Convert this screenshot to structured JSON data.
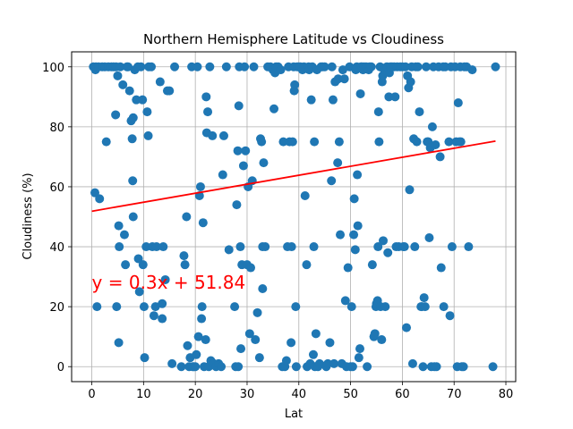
{
  "chart_data": {
    "type": "scatter",
    "title": "Northern Hemisphere Latitude vs Cloudiness",
    "xlabel": "Lat",
    "ylabel": "Cloudiness (%)",
    "xlim": [
      -3.9,
      81.9
    ],
    "ylim": [
      -5,
      105
    ],
    "xticks": [
      0,
      10,
      20,
      30,
      40,
      50,
      60,
      70,
      80
    ],
    "yticks": [
      0,
      20,
      40,
      60,
      80,
      100
    ],
    "grid": true,
    "colors": {
      "points": "#1f77b4",
      "regression": "#ff0000",
      "annotation": "#ff0000"
    },
    "annotation": {
      "text": "y = 0.3x + 51.84",
      "x": 0,
      "y": 26
    },
    "regression": {
      "slope": 0.3,
      "intercept": 51.84,
      "x_range": [
        0,
        78
      ]
    },
    "points": [
      [
        0.3,
        100
      ],
      [
        0.6,
        58
      ],
      [
        0.7,
        99
      ],
      [
        0.8,
        100
      ],
      [
        1,
        20
      ],
      [
        1.3,
        100
      ],
      [
        1.5,
        56
      ],
      [
        2,
        100
      ],
      [
        2.5,
        100
      ],
      [
        2.8,
        75
      ],
      [
        3.2,
        100
      ],
      [
        3.8,
        100
      ],
      [
        4.2,
        100
      ],
      [
        4.6,
        84
      ],
      [
        4.7,
        100
      ],
      [
        4.8,
        20
      ],
      [
        5,
        97
      ],
      [
        5.2,
        47
      ],
      [
        5.2,
        8
      ],
      [
        5.3,
        40
      ],
      [
        5.5,
        100
      ],
      [
        6,
        94
      ],
      [
        6.3,
        44
      ],
      [
        6.5,
        34
      ],
      [
        6.8,
        100
      ],
      [
        7,
        100
      ],
      [
        7.3,
        92
      ],
      [
        7.6,
        82
      ],
      [
        7.8,
        76
      ],
      [
        7.9,
        62
      ],
      [
        8,
        50
      ],
      [
        8,
        83
      ],
      [
        8.3,
        99
      ],
      [
        8.6,
        89
      ],
      [
        8.9,
        100
      ],
      [
        9,
        36
      ],
      [
        9.2,
        25
      ],
      [
        9.5,
        100
      ],
      [
        9.8,
        89
      ],
      [
        9.9,
        34
      ],
      [
        10.1,
        20
      ],
      [
        10.2,
        3
      ],
      [
        10.5,
        40
      ],
      [
        10.7,
        85
      ],
      [
        10.9,
        77
      ],
      [
        11,
        100
      ],
      [
        11.5,
        100
      ],
      [
        11.7,
        40
      ],
      [
        12,
        17
      ],
      [
        12.3,
        20
      ],
      [
        12.5,
        40
      ],
      [
        13.2,
        95
      ],
      [
        13.6,
        21
      ],
      [
        13.6,
        16
      ],
      [
        13.8,
        40
      ],
      [
        14.2,
        29
      ],
      [
        14.6,
        92
      ],
      [
        15,
        92
      ],
      [
        15.5,
        1
      ],
      [
        16,
        100
      ],
      [
        17.3,
        0
      ],
      [
        17.8,
        37
      ],
      [
        18,
        34
      ],
      [
        18.3,
        50
      ],
      [
        18.5,
        7
      ],
      [
        18.8,
        0
      ],
      [
        19,
        3
      ],
      [
        19.3,
        100
      ],
      [
        19.5,
        0
      ],
      [
        19.7,
        0
      ],
      [
        20,
        0
      ],
      [
        20.2,
        4
      ],
      [
        20.4,
        100
      ],
      [
        20.6,
        10
      ],
      [
        20.8,
        57
      ],
      [
        21,
        60
      ],
      [
        21.2,
        16
      ],
      [
        21.3,
        20
      ],
      [
        21.5,
        48
      ],
      [
        21.7,
        0
      ],
      [
        22,
        9
      ],
      [
        22.1,
        90
      ],
      [
        22.2,
        78
      ],
      [
        22.4,
        85
      ],
      [
        22.6,
        0
      ],
      [
        22.8,
        100
      ],
      [
        23,
        2
      ],
      [
        23.3,
        77
      ],
      [
        23.6,
        1
      ],
      [
        24,
        0
      ],
      [
        24.5,
        1
      ],
      [
        25,
        0
      ],
      [
        25.3,
        64
      ],
      [
        25.5,
        77
      ],
      [
        26,
        100
      ],
      [
        26.5,
        39
      ],
      [
        27.6,
        20
      ],
      [
        27.8,
        0
      ],
      [
        28,
        54
      ],
      [
        28.2,
        72
      ],
      [
        28.3,
        0
      ],
      [
        28.4,
        87
      ],
      [
        28.5,
        100
      ],
      [
        28.7,
        40
      ],
      [
        28.8,
        6
      ],
      [
        29,
        34
      ],
      [
        29.3,
        67
      ],
      [
        29.5,
        100
      ],
      [
        29.7,
        72
      ],
      [
        30,
        34
      ],
      [
        30.2,
        60
      ],
      [
        30.5,
        11
      ],
      [
        30.7,
        33
      ],
      [
        31,
        62
      ],
      [
        31.3,
        100
      ],
      [
        31.6,
        9
      ],
      [
        32,
        18
      ],
      [
        32.4,
        3
      ],
      [
        32.6,
        76
      ],
      [
        32.8,
        75
      ],
      [
        33,
        40
      ],
      [
        33,
        26
      ],
      [
        33.2,
        68
      ],
      [
        33.5,
        40
      ],
      [
        34,
        100
      ],
      [
        34.5,
        100
      ],
      [
        35,
        99
      ],
      [
        35.2,
        86
      ],
      [
        35.4,
        98
      ],
      [
        35.6,
        100
      ],
      [
        36,
        100
      ],
      [
        36.5,
        99
      ],
      [
        36.8,
        0
      ],
      [
        37,
        75
      ],
      [
        37.3,
        0
      ],
      [
        37.6,
        2
      ],
      [
        37.8,
        40
      ],
      [
        38,
        100
      ],
      [
        38.2,
        75
      ],
      [
        38.5,
        8
      ],
      [
        38.6,
        40
      ],
      [
        38.8,
        75
      ],
      [
        39,
        100
      ],
      [
        39.1,
        92
      ],
      [
        39.2,
        94
      ],
      [
        39.4,
        20
      ],
      [
        39.5,
        0
      ],
      [
        39.7,
        100
      ],
      [
        40,
        100
      ],
      [
        40.3,
        100
      ],
      [
        40.7,
        99
      ],
      [
        41,
        100
      ],
      [
        41.2,
        57
      ],
      [
        41.5,
        34
      ],
      [
        41.6,
        0
      ],
      [
        41.9,
        100
      ],
      [
        42,
        99
      ],
      [
        42.2,
        1
      ],
      [
        42.4,
        89
      ],
      [
        42.6,
        100
      ],
      [
        42.8,
        4
      ],
      [
        42.9,
        40
      ],
      [
        43,
        75
      ],
      [
        43.1,
        0
      ],
      [
        43.3,
        11
      ],
      [
        43.5,
        99
      ],
      [
        43.7,
        0
      ],
      [
        44,
        1
      ],
      [
        44.3,
        100
      ],
      [
        44.6,
        100
      ],
      [
        45,
        100
      ],
      [
        45.3,
        0
      ],
      [
        45.6,
        1
      ],
      [
        46,
        8
      ],
      [
        46.3,
        62
      ],
      [
        46.4,
        100
      ],
      [
        46.6,
        89
      ],
      [
        46.8,
        1
      ],
      [
        47,
        95
      ],
      [
        47.5,
        68
      ],
      [
        47.6,
        96
      ],
      [
        47.8,
        75
      ],
      [
        48,
        44
      ],
      [
        48.3,
        1
      ],
      [
        48.5,
        99
      ],
      [
        48.8,
        96
      ],
      [
        49,
        22
      ],
      [
        49.2,
        0
      ],
      [
        49.5,
        33
      ],
      [
        49.8,
        100
      ],
      [
        50,
        0
      ],
      [
        50.2,
        20
      ],
      [
        50.4,
        0
      ],
      [
        50.6,
        44
      ],
      [
        50.7,
        56
      ],
      [
        50.9,
        39
      ],
      [
        51,
        99
      ],
      [
        51.2,
        100
      ],
      [
        51.3,
        64
      ],
      [
        51.4,
        47
      ],
      [
        51.6,
        3
      ],
      [
        51.8,
        6
      ],
      [
        51.9,
        91
      ],
      [
        52,
        100
      ],
      [
        52.2,
        100
      ],
      [
        52.4,
        99
      ],
      [
        52.6,
        100
      ],
      [
        53,
        100
      ],
      [
        53.2,
        0
      ],
      [
        53.5,
        99
      ],
      [
        53.7,
        100
      ],
      [
        54,
        100
      ],
      [
        54.2,
        34
      ],
      [
        54.5,
        10
      ],
      [
        54.7,
        11
      ],
      [
        54.9,
        20
      ],
      [
        55,
        21
      ],
      [
        55.2,
        22
      ],
      [
        55.3,
        40
      ],
      [
        55.4,
        85
      ],
      [
        55.5,
        75
      ],
      [
        55.7,
        100
      ],
      [
        55.8,
        20
      ],
      [
        56,
        9
      ],
      [
        56.1,
        95
      ],
      [
        56.2,
        97
      ],
      [
        56.3,
        42
      ],
      [
        56.5,
        99
      ],
      [
        56.7,
        20
      ],
      [
        57,
        100
      ],
      [
        57.2,
        38
      ],
      [
        57.4,
        90
      ],
      [
        57.5,
        98
      ],
      [
        57.7,
        100
      ],
      [
        58,
        100
      ],
      [
        58.4,
        100
      ],
      [
        58.6,
        90
      ],
      [
        58.8,
        40
      ],
      [
        59,
        100
      ],
      [
        59.3,
        40
      ],
      [
        59.6,
        100
      ],
      [
        60,
        100
      ],
      [
        60.2,
        40
      ],
      [
        60.4,
        40
      ],
      [
        60.6,
        100
      ],
      [
        60.8,
        13
      ],
      [
        61,
        97
      ],
      [
        61.2,
        93
      ],
      [
        61.4,
        59
      ],
      [
        61.6,
        95
      ],
      [
        61.8,
        100
      ],
      [
        62,
        1
      ],
      [
        62.2,
        76
      ],
      [
        62.4,
        40
      ],
      [
        62.6,
        100
      ],
      [
        62.8,
        75
      ],
      [
        63,
        100
      ],
      [
        63.3,
        85
      ],
      [
        63.6,
        20
      ],
      [
        63.8,
        20
      ],
      [
        64,
        0
      ],
      [
        64.2,
        23
      ],
      [
        64.4,
        20
      ],
      [
        64.6,
        100
      ],
      [
        64.8,
        75
      ],
      [
        65,
        75
      ],
      [
        65.2,
        43
      ],
      [
        65.4,
        73
      ],
      [
        65.6,
        0
      ],
      [
        65.8,
        80
      ],
      [
        66,
        100
      ],
      [
        66.2,
        0
      ],
      [
        66.4,
        74
      ],
      [
        66.6,
        0
      ],
      [
        67,
        100
      ],
      [
        67.3,
        70
      ],
      [
        67.5,
        33
      ],
      [
        67.9,
        100
      ],
      [
        68,
        20
      ],
      [
        68.3,
        100
      ],
      [
        69,
        75
      ],
      [
        69.2,
        17
      ],
      [
        69.4,
        100
      ],
      [
        69.6,
        40
      ],
      [
        70.2,
        100
      ],
      [
        70.4,
        75
      ],
      [
        70.6,
        0
      ],
      [
        70.8,
        88
      ],
      [
        71,
        75
      ],
      [
        71.2,
        100
      ],
      [
        71.3,
        75
      ],
      [
        71.5,
        0
      ],
      [
        71.8,
        0
      ],
      [
        72,
        100
      ],
      [
        72.4,
        100
      ],
      [
        72.8,
        40
      ],
      [
        73.5,
        99
      ],
      [
        77.5,
        0
      ],
      [
        78,
        100
      ]
    ]
  }
}
